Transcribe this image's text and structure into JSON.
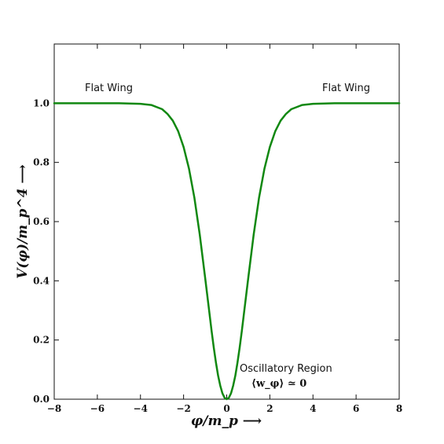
{
  "chart_data": {
    "type": "line",
    "title": "",
    "xlabel": "φ/m_p ⟶",
    "ylabel": "V(φ)/m_p^4 ⟶",
    "xlim": [
      -8,
      8
    ],
    "ylim": [
      0,
      1.2
    ],
    "grid": false,
    "legend": "none",
    "x_ticks": [
      -8,
      -6,
      -4,
      -2,
      0,
      2,
      4,
      6,
      8
    ],
    "x_tick_labels": [
      "−8",
      "−6",
      "−4",
      "−2",
      "0",
      "2",
      "4",
      "6",
      "8"
    ],
    "y_ticks": [
      0.0,
      0.2,
      0.4,
      0.6,
      0.8,
      1.0
    ],
    "y_tick_labels": [
      "0.0",
      "0.2",
      "0.4",
      "0.6",
      "0.8",
      "1.0"
    ],
    "series": [
      {
        "color": "#118811",
        "x": [
          -8,
          -7,
          -6,
          -5,
          -4,
          -3.5,
          -3,
          -2.75,
          -2.5,
          -2.25,
          -2,
          -1.75,
          -1.5,
          -1.25,
          -1,
          -0.9,
          -0.8,
          -0.7,
          -0.6,
          -0.5,
          -0.4,
          -0.3,
          -0.2,
          -0.1,
          0,
          0.1,
          0.2,
          0.3,
          0.4,
          0.5,
          0.6,
          0.7,
          0.8,
          0.9,
          1,
          1.25,
          1.5,
          1.75,
          2,
          2.25,
          2.5,
          2.75,
          3,
          3.5,
          4,
          5,
          6,
          7,
          8
        ],
        "y": [
          1.0,
          1.0,
          1.0,
          1.0,
          0.998,
          0.994,
          0.98,
          0.964,
          0.941,
          0.905,
          0.852,
          0.779,
          0.681,
          0.556,
          0.41,
          0.35,
          0.29,
          0.23,
          0.174,
          0.124,
          0.08,
          0.046,
          0.02,
          0.005,
          0.0,
          0.005,
          0.02,
          0.046,
          0.08,
          0.124,
          0.174,
          0.23,
          0.29,
          0.35,
          0.41,
          0.556,
          0.681,
          0.779,
          0.852,
          0.905,
          0.941,
          0.964,
          0.98,
          0.994,
          0.998,
          1.0,
          1.0,
          1.0,
          1.0
        ]
      }
    ],
    "annotations": {
      "flat_wing_left": "Flat Wing",
      "flat_wing_right": "Flat Wing",
      "oscillatory_region": "Oscillatory Region",
      "oscillatory_math": "⟨w_φ⟩ ≃ 0"
    }
  }
}
